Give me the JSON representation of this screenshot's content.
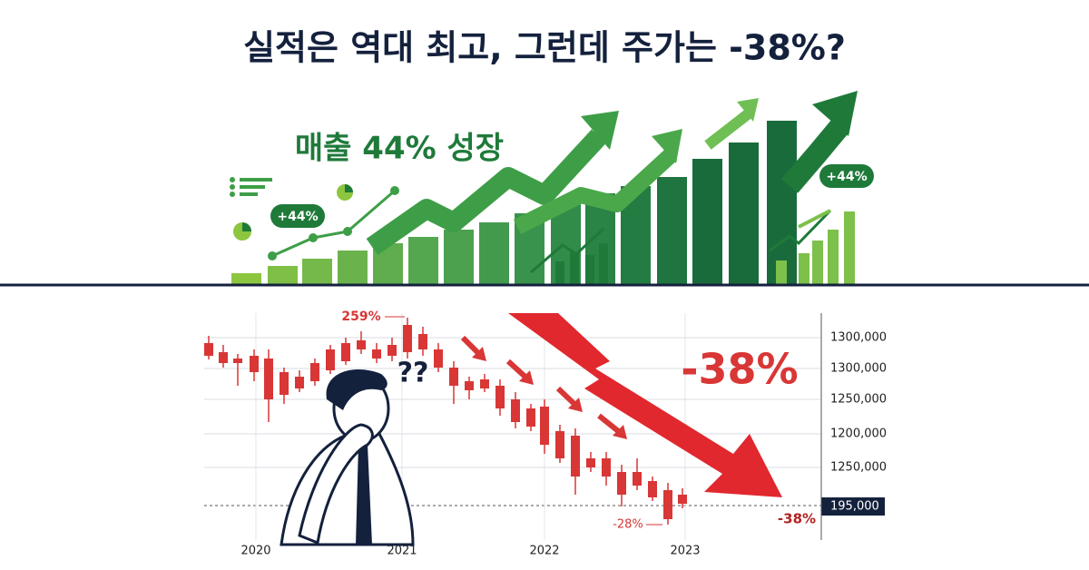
{
  "title": "실적은 역대 최고, 그런데 주가는 -38%?",
  "top_panel": {
    "headline": "매출 44% 성장",
    "badges": [
      "+44%",
      "+44%"
    ]
  },
  "bottom_panel": {
    "annotations": {
      "peak": "259%",
      "drop": "-38%",
      "end": "-38%",
      "low": "-28%",
      "puzzled": "??"
    },
    "y_axis_labels": [
      "1300,000",
      "1300,000",
      "1250,000",
      "1200,000",
      "1250,000",
      "195,000"
    ],
    "x_axis_labels": [
      "2020",
      "2021",
      "2022",
      "2023"
    ]
  }
}
